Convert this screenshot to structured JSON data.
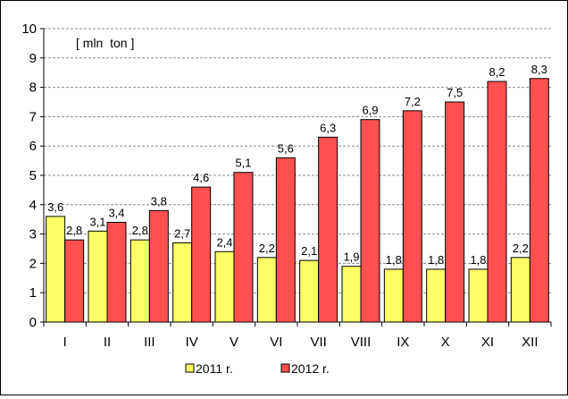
{
  "chart_data": {
    "type": "bar",
    "unit_label": "[ mln  ton ]",
    "categories": [
      "I",
      "II",
      "III",
      "IV",
      "V",
      "VI",
      "VII",
      "VIII",
      "IX",
      "X",
      "XI",
      "XII"
    ],
    "series": [
      {
        "name": "2011 r.",
        "color": "#ffff66",
        "values": [
          3.6,
          3.1,
          2.8,
          2.7,
          2.4,
          2.2,
          2.1,
          1.9,
          1.8,
          1.8,
          1.8,
          2.2
        ],
        "labels": [
          "3,6",
          "3,1",
          "2,8",
          "2,7",
          "2,4",
          "2,2",
          "2,1",
          "1,9",
          "1,8",
          "1,8",
          "1,8",
          "2,2"
        ]
      },
      {
        "name": "2012 r.",
        "color": "#ff5050",
        "values": [
          2.8,
          3.4,
          3.8,
          4.6,
          5.1,
          5.6,
          6.3,
          6.9,
          7.2,
          7.5,
          8.2,
          8.3
        ],
        "labels": [
          "2,8",
          "3,4",
          "3,8",
          "4,6",
          "5,1",
          "5,6",
          "6,3",
          "6,9",
          "7,2",
          "7,5",
          "8,2",
          "8,3"
        ]
      }
    ],
    "ylim": [
      0,
      10
    ],
    "yticks": [
      0,
      1,
      2,
      3,
      4,
      5,
      6,
      7,
      8,
      9,
      10
    ],
    "grid": true,
    "legend_position": "bottom"
  }
}
